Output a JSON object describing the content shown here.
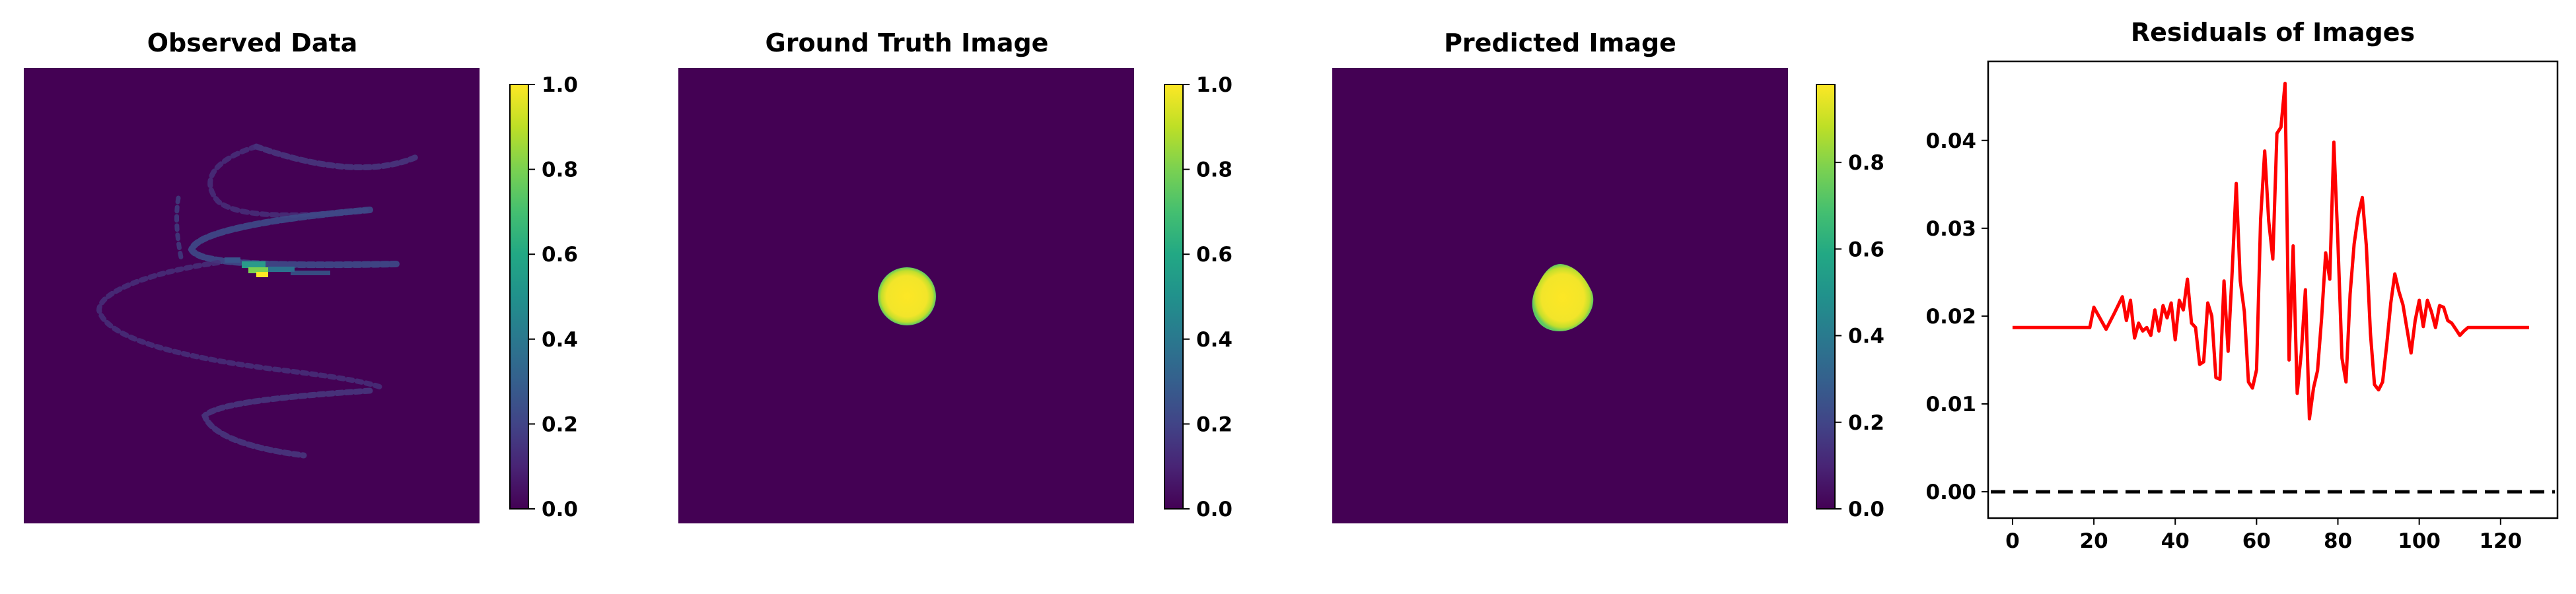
{
  "colors": {
    "background_panel": "#440154",
    "residual_line": "#ff0000",
    "zero_line": "#000000",
    "viridis_low": "#440154",
    "viridis_high": "#fde725"
  },
  "chart_data": [
    {
      "type": "heatmap",
      "title": "Observed Data",
      "colorbar": {
        "range": [
          0,
          1.0
        ],
        "ticks": [
          "0.0",
          "0.2",
          "0.4",
          "0.6",
          "0.8",
          "1.0"
        ]
      },
      "content": "sparse helical streak of low-intensity pixels with a bright cluster near center"
    },
    {
      "type": "heatmap",
      "title": "Ground Truth Image",
      "colorbar": {
        "range": [
          0,
          1.0
        ],
        "ticks": [
          "0.0",
          "0.2",
          "0.4",
          "0.6",
          "0.8",
          "1.0"
        ]
      },
      "content": "single bright circular blob near center"
    },
    {
      "type": "heatmap",
      "title": "Predicted Image",
      "colorbar": {
        "range": [
          0,
          0.98
        ],
        "ticks": [
          "0.0",
          "0.2",
          "0.4",
          "0.6",
          "0.8"
        ]
      },
      "content": "single bright irregular blob near center"
    },
    {
      "type": "line",
      "title": "Residuals of Images",
      "xlabel": "",
      "ylabel": "",
      "xlim": [
        -6,
        134
      ],
      "ylim": [
        -0.003,
        0.049
      ],
      "xticks": [
        0,
        20,
        40,
        60,
        80,
        100,
        120
      ],
      "yticks": [
        0.0,
        0.01,
        0.02,
        0.03,
        0.04
      ],
      "ytick_labels": [
        "0.00",
        "0.01",
        "0.02",
        "0.03",
        "0.04"
      ],
      "series": [
        {
          "color": "#ff0000",
          "x": [
            0,
            19,
            20,
            23,
            25,
            27,
            28,
            29,
            30,
            31,
            32,
            33,
            34,
            35,
            36,
            37,
            38,
            39,
            40,
            41,
            42,
            43,
            44,
            45,
            46,
            47,
            48,
            49,
            50,
            51,
            52,
            53,
            54,
            55,
            56,
            57,
            58,
            59,
            60,
            61,
            62,
            63,
            64,
            65,
            66,
            67,
            68,
            69,
            70,
            71,
            72,
            73,
            74,
            75,
            76,
            77,
            78,
            79,
            80,
            81,
            82,
            83,
            84,
            85,
            86,
            87,
            88,
            89,
            90,
            91,
            92,
            93,
            94,
            95,
            96,
            97,
            98,
            99,
            100,
            101,
            102,
            103,
            104,
            105,
            106,
            107,
            108,
            109,
            110,
            111,
            112,
            127
          ],
          "y": [
            0.0187,
            0.0187,
            0.021,
            0.0185,
            0.0203,
            0.0222,
            0.0195,
            0.0218,
            0.0175,
            0.0192,
            0.0183,
            0.0187,
            0.0178,
            0.0207,
            0.0183,
            0.0212,
            0.0198,
            0.0215,
            0.0173,
            0.0218,
            0.0207,
            0.0242,
            0.0192,
            0.0187,
            0.0145,
            0.0148,
            0.0215,
            0.02,
            0.013,
            0.0128,
            0.024,
            0.016,
            0.025,
            0.0351,
            0.024,
            0.0205,
            0.0125,
            0.0118,
            0.0139,
            0.031,
            0.0388,
            0.0308,
            0.0265,
            0.0408,
            0.0415,
            0.0465,
            0.015,
            0.028,
            0.0112,
            0.0158,
            0.023,
            0.0083,
            0.0118,
            0.0138,
            0.0198,
            0.0272,
            0.0242,
            0.0398,
            0.0285,
            0.0152,
            0.0125,
            0.0225,
            0.0282,
            0.0315,
            0.0335,
            0.028,
            0.018,
            0.0122,
            0.0116,
            0.0125,
            0.0167,
            0.0215,
            0.0248,
            0.0228,
            0.0213,
            0.0185,
            0.0158,
            0.0195,
            0.0218,
            0.0188,
            0.0218,
            0.0205,
            0.0187,
            0.0212,
            0.021,
            0.0195,
            0.0192,
            0.0185,
            0.0178,
            0.0183,
            0.0187,
            0.0187
          ]
        }
      ],
      "reference_line": {
        "y": 0.0,
        "style": "dashed",
        "color": "#000000"
      }
    }
  ]
}
